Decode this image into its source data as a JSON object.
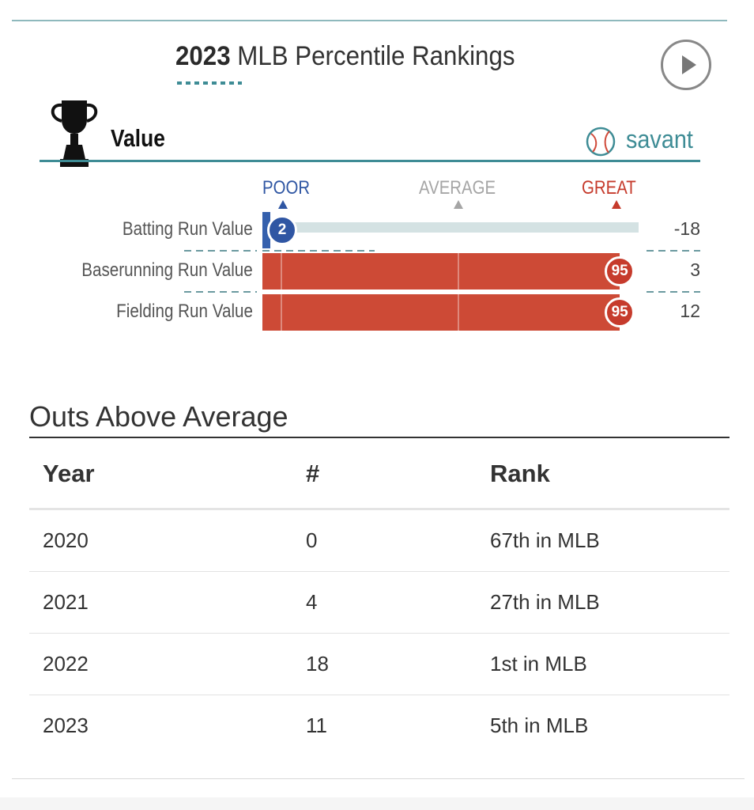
{
  "header": {
    "title_year": "2023",
    "title_rest": " MLB Percentile Rankings",
    "play_icon": "play-icon"
  },
  "value_section": {
    "label": "Value",
    "trophy_icon": "trophy-icon",
    "brand": {
      "name": "savant",
      "icon": "baseball-icon"
    },
    "scale": {
      "poor": "POOR",
      "average": "AVERAGE",
      "great": "GREAT"
    }
  },
  "metrics": [
    {
      "name": "Batting Run Value",
      "percentile": 2,
      "value": "-18",
      "tier": "poor"
    },
    {
      "name": "Baserunning Run Value",
      "percentile": 95,
      "value": "3",
      "tier": "great"
    },
    {
      "name": "Fielding Run Value",
      "percentile": 95,
      "value": "12",
      "tier": "great"
    }
  ],
  "oaa": {
    "title": "Outs Above Average",
    "columns": [
      "Year",
      "#",
      "Rank"
    ],
    "rows": [
      [
        "2020",
        "0",
        "67th in MLB"
      ],
      [
        "2021",
        "4",
        "27th in MLB"
      ],
      [
        "2022",
        "18",
        "1st in MLB"
      ],
      [
        "2023",
        "11",
        "5th in MLB"
      ]
    ]
  },
  "colors": {
    "great": "#c63b2c",
    "poor": "#2f56a3",
    "accent": "#3e8c95",
    "track": "#d4e2e3"
  }
}
